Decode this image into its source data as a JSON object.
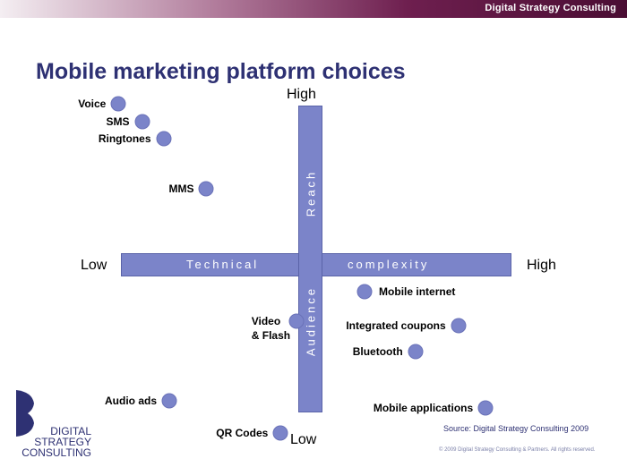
{
  "header": {
    "brand": "Digital Strategy Consulting"
  },
  "title": "Mobile marketing platform choices",
  "axes": {
    "x_low": "Low",
    "x_high": "High",
    "y_high": "High",
    "y_low": "Low",
    "x_word_1": "Technical",
    "x_word_2": "complexity",
    "y_word_top": "Reach",
    "y_word_bottom": "Audience"
  },
  "items": [
    {
      "label": "Voice",
      "x": -0.98,
      "y": 0.95
    },
    {
      "label": "SMS",
      "x": -0.86,
      "y": 0.84
    },
    {
      "label": "Ringtones",
      "x": -0.75,
      "y": 0.74
    },
    {
      "label": "MMS",
      "x": -0.53,
      "y": 0.45
    },
    {
      "label": "Mobile internet",
      "x": 0.28,
      "y": -0.16
    },
    {
      "label": "Video\n& Flash",
      "x": -0.07,
      "y": -0.33
    },
    {
      "label": "Integrated coupons",
      "x": 0.76,
      "y": -0.36
    },
    {
      "label": "Bluetooth",
      "x": 0.54,
      "y": -0.51
    },
    {
      "label": "Audio ads",
      "x": -0.72,
      "y": -0.8
    },
    {
      "label": "Mobile applications",
      "x": 0.9,
      "y": -0.84
    },
    {
      "label": "QR Codes",
      "x": -0.15,
      "y": -0.99
    }
  ],
  "logo": {
    "line1": "DIGITAL",
    "line2": "STRATEGY",
    "line3": "CONSULTING"
  },
  "source": "Source: Digital Strategy Consulting 2009",
  "copyright": "© 2009 Digital Strategy Consulting & Partners. All rights reserved."
}
